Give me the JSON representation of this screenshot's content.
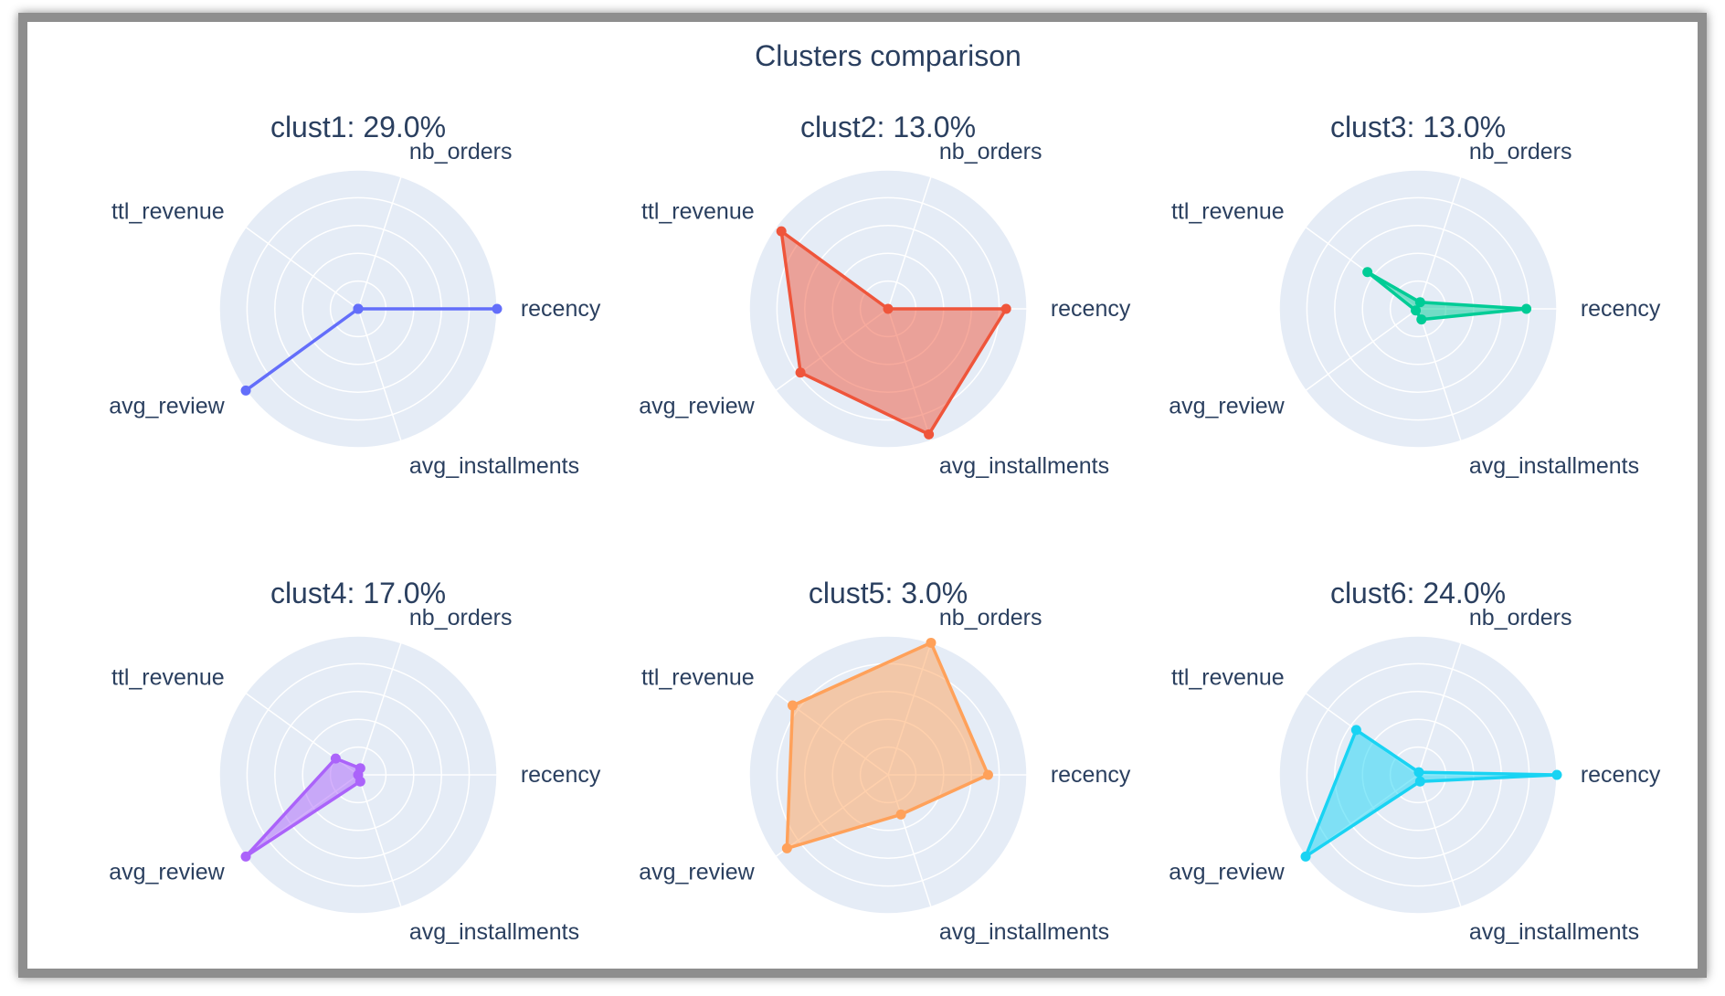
{
  "title": "Clusters comparison",
  "chart_data": {
    "type": "radar",
    "title": "Clusters comparison",
    "axes": [
      "recency",
      "nb_orders",
      "ttl_revenue",
      "avg_review",
      "avg_installments"
    ],
    "radial_range": [
      0,
      1
    ],
    "grid": true,
    "colors": {
      "background": "#e5ecf6",
      "grid": "#ffffff",
      "text": "#2a3f5f"
    },
    "subplots": [
      {
        "title": "clust1: 29.0%",
        "color": "#636efa",
        "values": [
          1.0,
          0.0,
          0.0,
          1.0,
          0.0
        ]
      },
      {
        "title": "clust2: 13.0%",
        "color": "#ef553b",
        "values": [
          0.85,
          0.0,
          0.95,
          0.78,
          0.95
        ]
      },
      {
        "title": "clust3: 13.0%",
        "color": "#00cc96",
        "values": [
          0.78,
          0.05,
          0.45,
          0.02,
          0.08
        ]
      },
      {
        "title": "clust4: 17.0%",
        "color": "#ab63fa",
        "values": [
          0.0,
          0.05,
          0.2,
          1.0,
          0.05
        ]
      },
      {
        "title": "clust5: 3.0%",
        "color": "#ffa15a",
        "values": [
          0.72,
          1.0,
          0.85,
          0.9,
          0.3
        ]
      },
      {
        "title": "clust6: 24.0%",
        "color": "#19d3f3",
        "values": [
          1.0,
          0.02,
          0.55,
          1.0,
          0.05
        ]
      }
    ]
  }
}
